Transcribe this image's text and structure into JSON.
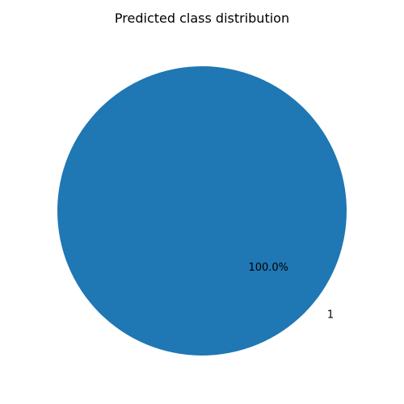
{
  "chart_data": {
    "type": "pie",
    "title": "Predicted class distribution",
    "slices": [
      {
        "label": "1",
        "value": 100.0,
        "percent_label": "100.0%",
        "color": "#1f77b4"
      }
    ]
  }
}
